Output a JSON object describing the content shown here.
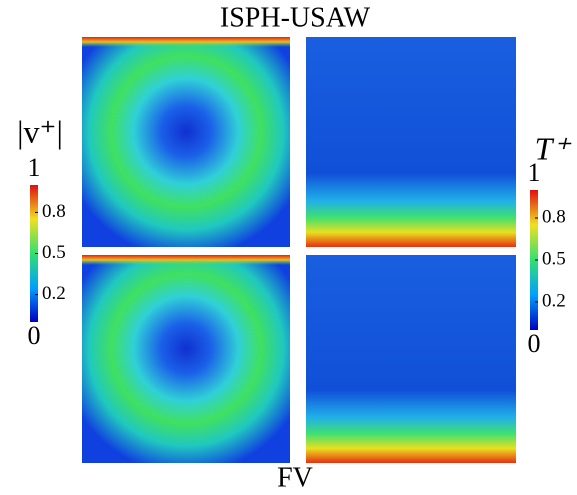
{
  "title": "ISPH-USAW",
  "bottom_label": "FV",
  "colorbars": [
    {
      "label": "|v⁺|",
      "ticks": [
        0,
        0.2,
        0.5,
        0.8,
        1
      ]
    },
    {
      "label": "T⁺",
      "ticks": [
        0,
        0.2,
        0.5,
        0.8,
        1
      ]
    }
  ]
}
